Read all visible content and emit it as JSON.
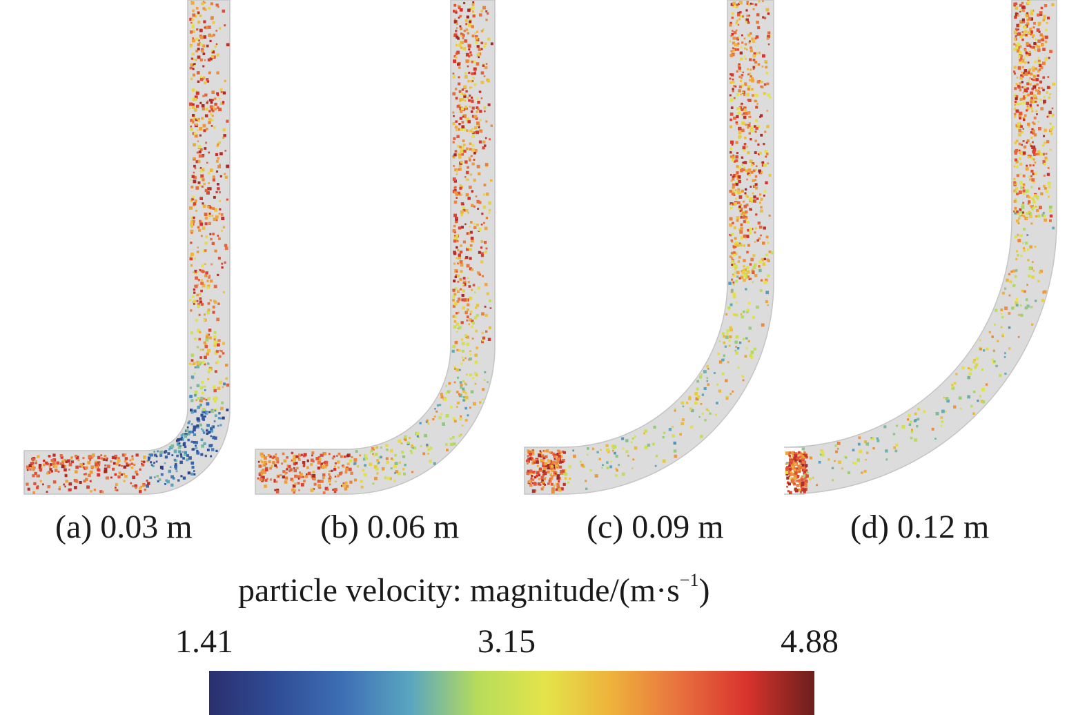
{
  "panels": [
    {
      "label": "(a) 0.03 m",
      "bend_radius_m": 0.03
    },
    {
      "label": "(b) 0.06 m",
      "bend_radius_m": 0.06
    },
    {
      "label": "(c) 0.09 m",
      "bend_radius_m": 0.09
    },
    {
      "label": "(d) 0.12 m",
      "bend_radius_m": 0.12
    }
  ],
  "legend": {
    "title": "particle velocity: magnitude/(m·s",
    "title_exp": "−1",
    "title_end": ")",
    "ticks": [
      "1.41",
      "3.15",
      "4.88"
    ],
    "min": 1.41,
    "max": 4.88,
    "colormap": [
      "#2b2f6e",
      "#2f4d96",
      "#3d6fb5",
      "#5aa6c0",
      "#b7dc5b",
      "#e4e44a",
      "#eeb13b",
      "#e8703f",
      "#d8332d",
      "#6b1f1c"
    ]
  },
  "colors": {
    "pipe": "#dcdcdc",
    "pipe_edge": "#c4c4c4"
  }
}
